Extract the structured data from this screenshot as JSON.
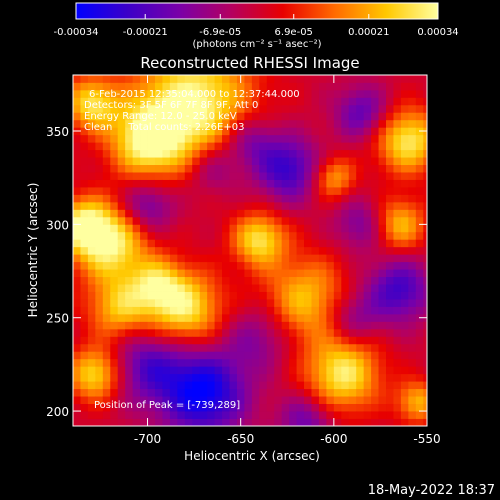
{
  "chart_data": {
    "type": "heatmap",
    "title": "Reconstructed RHESSI Image",
    "xlabel": "Heliocentric X (arcsec)",
    "ylabel": "Heliocentric Y (arcsec)",
    "xlim": [
      -740,
      -550
    ],
    "ylim": [
      192,
      380
    ],
    "x_ticks": [
      "-700",
      "-650",
      "-600",
      "-550"
    ],
    "x_tick_values": [
      -700,
      -650,
      -600,
      -550
    ],
    "y_ticks": [
      "200",
      "250",
      "300",
      "350"
    ],
    "y_tick_values": [
      200,
      250,
      300,
      350
    ],
    "colorbar": {
      "range": [
        -0.00034,
        0.00034
      ],
      "tick_labels": [
        "-0.00034",
        "-0.00021",
        "-6.9e-05",
        "6.9e-05",
        "0.00021",
        "0.00034"
      ],
      "tick_values": [
        -0.00034,
        -0.00021,
        -6.9e-05,
        6.9e-05,
        0.00021,
        0.00034
      ],
      "unit_label": "(photons cm⁻² s⁻¹ asec⁻²)",
      "colormap": [
        "#0000ff",
        "#3c00c8",
        "#7a00a8",
        "#b40060",
        "#e80000",
        "#ff6a00",
        "#ffc800",
        "#ffffa0"
      ]
    },
    "annotations": [
      "6-Feb-2015 12:35:04.000 to 12:37:44.000",
      "Detectors: 3F 5F 6F 7F 8F 9F, Att 0",
      "Energy Range: 12.0 - 25.0 keV",
      "Clean     Total counts: 2.26E+03"
    ],
    "peak_label": "Position of Peak = [-739,289]",
    "blobs": [
      {
        "x": -675,
        "y": 365,
        "v": 1.0,
        "s": 22
      },
      {
        "x": -700,
        "y": 345,
        "v": 0.9,
        "s": 14
      },
      {
        "x": -720,
        "y": 290,
        "v": 0.95,
        "s": 14
      },
      {
        "x": -735,
        "y": 300,
        "v": 0.8,
        "s": 10
      },
      {
        "x": -715,
        "y": 255,
        "v": 0.7,
        "s": 12
      },
      {
        "x": -680,
        "y": 255,
        "v": 0.9,
        "s": 14
      },
      {
        "x": -695,
        "y": 268,
        "v": 0.6,
        "s": 10
      },
      {
        "x": -640,
        "y": 292,
        "v": 0.85,
        "s": 10
      },
      {
        "x": -615,
        "y": 260,
        "v": 0.7,
        "s": 16
      },
      {
        "x": -595,
        "y": 220,
        "v": 0.9,
        "s": 14
      },
      {
        "x": -560,
        "y": 345,
        "v": 0.9,
        "s": 12
      },
      {
        "x": -565,
        "y": 300,
        "v": 0.7,
        "s": 10
      },
      {
        "x": -600,
        "y": 325,
        "v": 0.6,
        "s": 8
      },
      {
        "x": -728,
        "y": 220,
        "v": 0.85,
        "s": 10
      },
      {
        "x": -555,
        "y": 205,
        "v": 0.65,
        "s": 8
      },
      {
        "x": -730,
        "y": 365,
        "v": 0.8,
        "s": 10
      },
      {
        "x": -700,
        "y": 310,
        "v": -0.55,
        "s": 10
      },
      {
        "x": -665,
        "y": 330,
        "v": -0.4,
        "s": 10
      },
      {
        "x": -670,
        "y": 210,
        "v": -1.0,
        "s": 16
      },
      {
        "x": -700,
        "y": 225,
        "v": -0.6,
        "s": 14
      },
      {
        "x": -625,
        "y": 330,
        "v": -0.75,
        "s": 12
      },
      {
        "x": -645,
        "y": 345,
        "v": -0.5,
        "s": 10
      },
      {
        "x": -585,
        "y": 360,
        "v": -0.55,
        "s": 10
      },
      {
        "x": -565,
        "y": 265,
        "v": -0.7,
        "s": 12
      },
      {
        "x": -590,
        "y": 250,
        "v": -0.45,
        "s": 10
      },
      {
        "x": -640,
        "y": 240,
        "v": -0.4,
        "s": 12
      },
      {
        "x": -615,
        "y": 195,
        "v": -0.5,
        "s": 10
      },
      {
        "x": -585,
        "y": 300,
        "v": -0.45,
        "s": 10
      }
    ]
  },
  "footer": {
    "date": "18-May-2022 18:37"
  }
}
